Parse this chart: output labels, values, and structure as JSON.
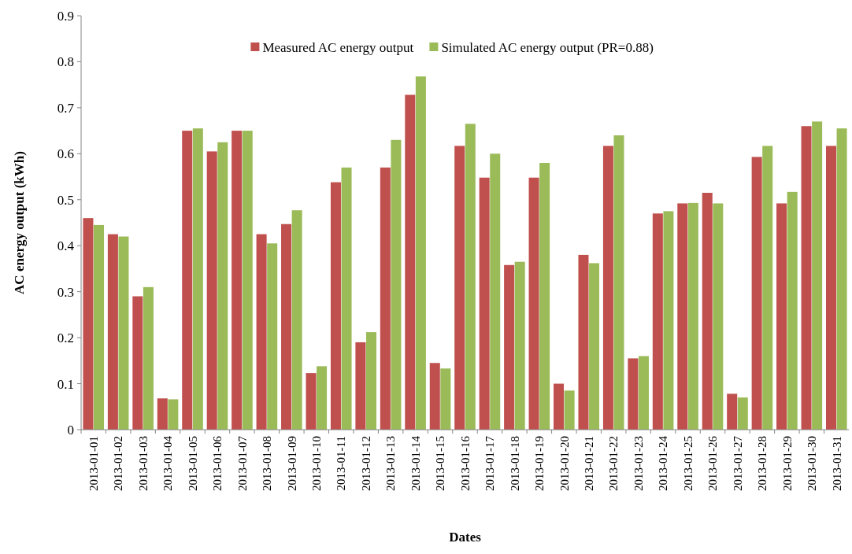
{
  "chart_data": {
    "type": "bar",
    "xlabel": "Dates",
    "ylabel": "AC energy output (kWh)",
    "categories": [
      "2013-01-01",
      "2013-01-02",
      "2013-01-03",
      "2013-01-04",
      "2013-01-05",
      "2013-01-06",
      "2013-01-07",
      "2013-01-08",
      "2013-01-09",
      "2013-01-10",
      "2013-01-11",
      "2013-01-12",
      "2013-01-13",
      "2013-01-14",
      "2013-01-15",
      "2013-01-16",
      "2013-01-17",
      "2013-01-18",
      "2013-01-19",
      "2013-01-20",
      "2013-01-21",
      "2013-01-22",
      "2013-01-23",
      "2013-01-24",
      "2013-01-25",
      "2013-01-26",
      "2013-01-27",
      "2013-01-28",
      "2013-01-29",
      "2013-01-30",
      "2013-01-31"
    ],
    "series": [
      {
        "name": "Measured AC energy output",
        "color": "#c0504d",
        "values": [
          0.46,
          0.425,
          0.29,
          0.068,
          0.65,
          0.605,
          0.65,
          0.425,
          0.447,
          0.123,
          0.538,
          0.19,
          0.57,
          0.728,
          0.145,
          0.617,
          0.548,
          0.358,
          0.548,
          0.1,
          0.38,
          0.617,
          0.155,
          0.47,
          0.492,
          0.515,
          0.078,
          0.593,
          0.492,
          0.66,
          0.617
        ]
      },
      {
        "name": "Simulated AC energy output (PR=0.88)",
        "color": "#9bbb59",
        "values": [
          0.445,
          0.42,
          0.31,
          0.066,
          0.655,
          0.625,
          0.65,
          0.405,
          0.477,
          0.138,
          0.57,
          0.212,
          0.63,
          0.768,
          0.133,
          0.665,
          0.6,
          0.365,
          0.58,
          0.085,
          0.362,
          0.64,
          0.16,
          0.475,
          0.493,
          0.492,
          0.07,
          0.617,
          0.517,
          0.67,
          0.655
        ]
      }
    ],
    "ylim": [
      0,
      0.9
    ],
    "yticks": [
      0,
      0.1,
      0.2,
      0.3,
      0.4,
      0.5,
      0.6,
      0.7,
      0.8,
      0.9
    ],
    "legend": "top",
    "grid": false
  }
}
